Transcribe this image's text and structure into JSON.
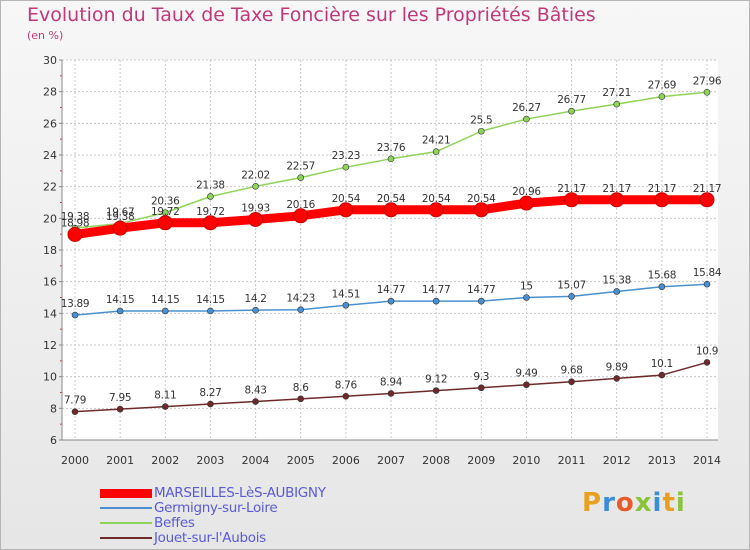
{
  "header": {
    "title": "Evolution du Taux de Taxe Foncière sur les Propriétés Bâties",
    "subtitle": "(en %)"
  },
  "brand": {
    "text": "Proxiti",
    "colors": [
      "#e8a020",
      "#3a8ed8",
      "#e85a2a",
      "#8ac43a",
      "#3a8ed8",
      "#e8a020",
      "#8ac43a"
    ]
  },
  "chart_data": {
    "type": "line",
    "x": [
      "2000",
      "2001",
      "2002",
      "2003",
      "2004",
      "2005",
      "2006",
      "2007",
      "2008",
      "2009",
      "2010",
      "2011",
      "2012",
      "2013",
      "2014"
    ],
    "ylim": [
      6,
      30
    ],
    "yticks": [
      6,
      8,
      10,
      12,
      14,
      16,
      18,
      20,
      22,
      24,
      26,
      28,
      30
    ],
    "grid": true,
    "legend_position": "bottom-left",
    "series": [
      {
        "name": "MARSEILLES-LèS-AUBIGNY",
        "color": "#ff0000",
        "emphasis": true,
        "values": [
          18.98,
          19.38,
          19.72,
          19.72,
          19.93,
          20.16,
          20.54,
          20.54,
          20.54,
          20.54,
          20.96,
          21.17,
          21.17,
          21.17,
          21.17
        ],
        "labels": [
          "18.98",
          "19.38",
          "19.72",
          "19.72",
          "19.93",
          "20.16",
          "20.54",
          "20.54",
          "20.54",
          "20.54",
          "20.96",
          "21.17",
          "21.17",
          "21.17",
          "21.17"
        ]
      },
      {
        "name": "Germigny-sur-Loire",
        "color": "#4a90d0",
        "values": [
          13.89,
          14.15,
          14.15,
          14.15,
          14.2,
          14.23,
          14.51,
          14.77,
          14.77,
          14.77,
          15,
          15.07,
          15.38,
          15.68,
          15.84
        ],
        "labels": [
          "13.89",
          "14.15",
          "14.15",
          "14.15",
          "14.2",
          "14.23",
          "14.51",
          "14.77",
          "14.77",
          "14.77",
          "15",
          "15.07",
          "15.38",
          "15.68",
          "15.84"
        ]
      },
      {
        "name": "Beffes",
        "color": "#8fd45a",
        "values": [
          19.38,
          19.67,
          20.36,
          21.38,
          22.02,
          22.57,
          23.23,
          23.76,
          24.21,
          25.5,
          26.27,
          26.77,
          27.21,
          27.69,
          27.96
        ],
        "labels": [
          "19.38",
          "19.67",
          "20.36",
          "21.38",
          "22.02",
          "22.57",
          "23.23",
          "23.76",
          "24.21",
          "25.5",
          "26.27",
          "26.77",
          "27.21",
          "27.69",
          "27.96"
        ]
      },
      {
        "name": "Jouet-sur-l'Aubois",
        "color": "#6e2a2a",
        "values": [
          7.79,
          7.95,
          8.11,
          8.27,
          8.43,
          8.6,
          8.76,
          8.94,
          9.12,
          9.3,
          9.49,
          9.68,
          9.89,
          10.1,
          10.9
        ],
        "labels": [
          "7.79",
          "7.95",
          "8.11",
          "8.27",
          "8.43",
          "8.6",
          "8.76",
          "8.94",
          "9.12",
          "9.3",
          "9.49",
          "9.68",
          "9.89",
          "10.1",
          "10.9"
        ]
      }
    ]
  }
}
